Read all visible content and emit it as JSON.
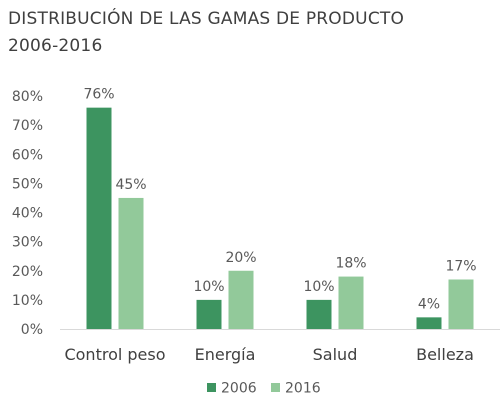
{
  "chart_data": {
    "type": "bar",
    "title_lines": [
      "DISTRIBUCIÓN DE LAS GAMAS DE PRODUCTO",
      "2006-2016"
    ],
    "categories": [
      "Control peso",
      "Energía",
      "Salud",
      "Belleza"
    ],
    "series": [
      {
        "name": "2006",
        "values": [
          76,
          10,
          10,
          4
        ],
        "color": "#3d9460",
        "labels": [
          "76%",
          "10%",
          "10%",
          "4%"
        ]
      },
      {
        "name": "2016",
        "values": [
          45,
          20,
          18,
          17
        ],
        "color": "#92c99a",
        "labels": [
          "45%",
          "20%",
          "18%",
          "17%"
        ]
      }
    ],
    "ylim": [
      0,
      80
    ],
    "y_ticks": [
      "0%",
      "10%",
      "20%",
      "30%",
      "40%",
      "50%",
      "60%",
      "70%",
      "80%"
    ],
    "grid": false,
    "legend_position": "bottom"
  }
}
